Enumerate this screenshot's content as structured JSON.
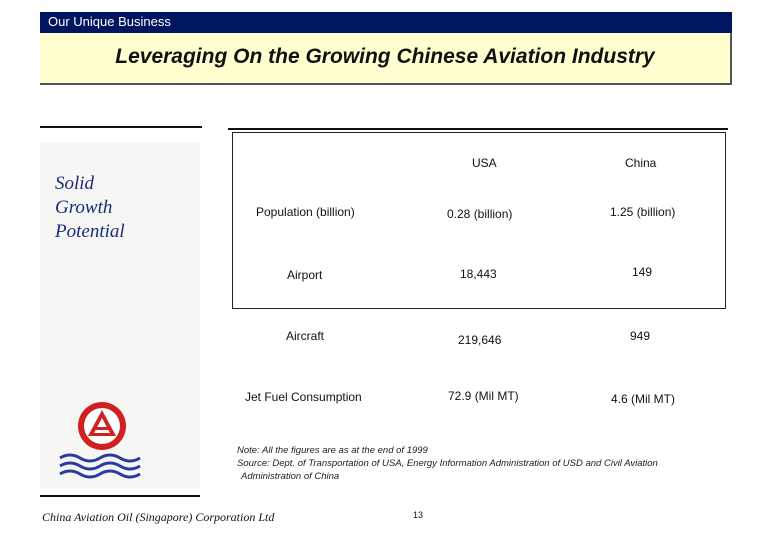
{
  "header": {
    "section": "Our Unique Business",
    "title": "Leveraging On the Growing Chinese Aviation Industry"
  },
  "sidebar": {
    "heading_lines": [
      "Solid",
      "Growth",
      "Potential"
    ]
  },
  "table": {
    "columns": [
      "",
      "USA",
      "China"
    ],
    "rows": [
      {
        "label": "Population (billion)",
        "usa": "0.28 (billion)",
        "china": "1.25 (billion)"
      },
      {
        "label": "Airport",
        "usa": "18,443",
        "china": "149"
      },
      {
        "label": "Aircraft",
        "usa": "219,646",
        "china": "949"
      },
      {
        "label": "Jet Fuel Consumption",
        "usa": "72.9 (Mil MT)",
        "china": "4.6 (Mil MT)"
      }
    ]
  },
  "note": {
    "line1": "Note: All the figures are as at the end of 1999",
    "line2": "Source: Dept. of Transportation of USA, Energy Information Administration of USD and Civil Aviation",
    "line3": "Administration of China"
  },
  "footer": {
    "company": "China Aviation Oil (Singapore) Corporation Ltd",
    "page_number": "13"
  },
  "logo": {
    "icon": "cao-logo-icon",
    "color_red": "#d02020",
    "color_blue": "#2a3aa0"
  }
}
